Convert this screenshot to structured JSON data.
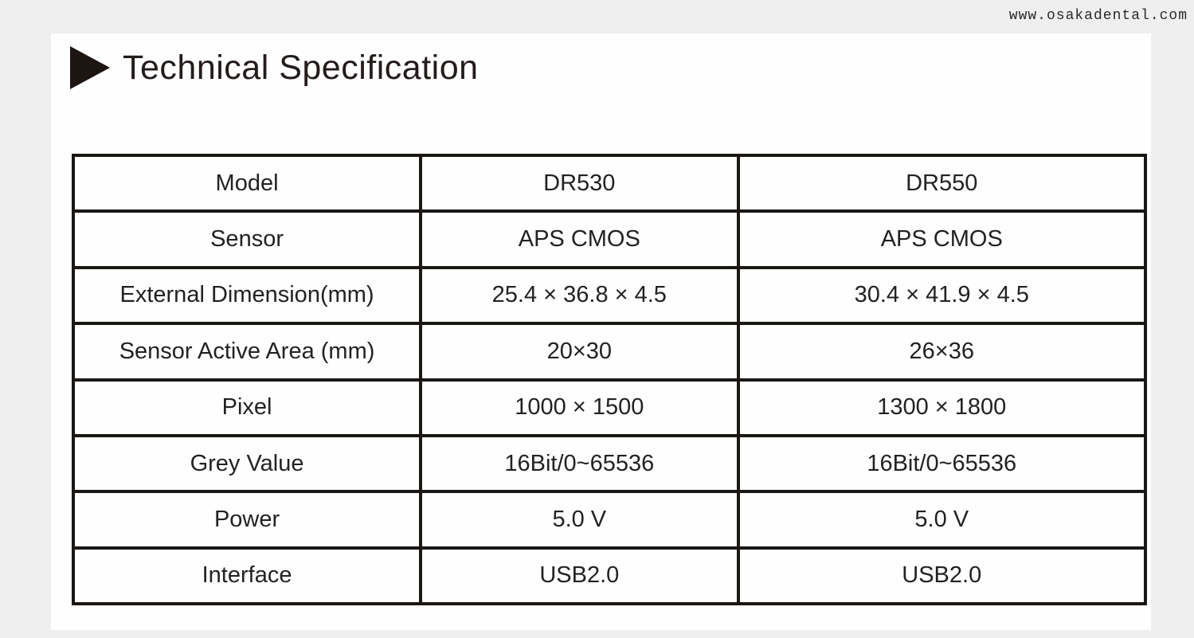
{
  "watermark": "www.osakadental.com",
  "title": "Technical Specification",
  "icons": {
    "title_bullet": "play-triangle-right"
  },
  "colors": {
    "page_background": "#efefef",
    "card_background": "#fefefe",
    "table_border": "#1a1714",
    "text": "#242220"
  },
  "table": {
    "rows": [
      {
        "cells": [
          "Model",
          "DR530",
          "DR550"
        ]
      },
      {
        "cells": [
          "Sensor",
          "APS CMOS",
          "APS CMOS"
        ]
      },
      {
        "cells": [
          "External Dimension(mm)",
          "25.4 × 36.8 × 4.5",
          "30.4 × 41.9 × 4.5"
        ]
      },
      {
        "cells": [
          "Sensor Active Area (mm)",
          "20×30",
          "26×36"
        ]
      },
      {
        "cells": [
          "Pixel",
          "1000 × 1500",
          "1300 × 1800"
        ]
      },
      {
        "cells": [
          "Grey Value",
          "16Bit/0~65536",
          "16Bit/0~65536"
        ]
      },
      {
        "cells": [
          "Power",
          "5.0 V",
          "5.0 V"
        ]
      },
      {
        "cells": [
          "Interface",
          "USB2.0",
          "USB2.0"
        ]
      }
    ]
  }
}
